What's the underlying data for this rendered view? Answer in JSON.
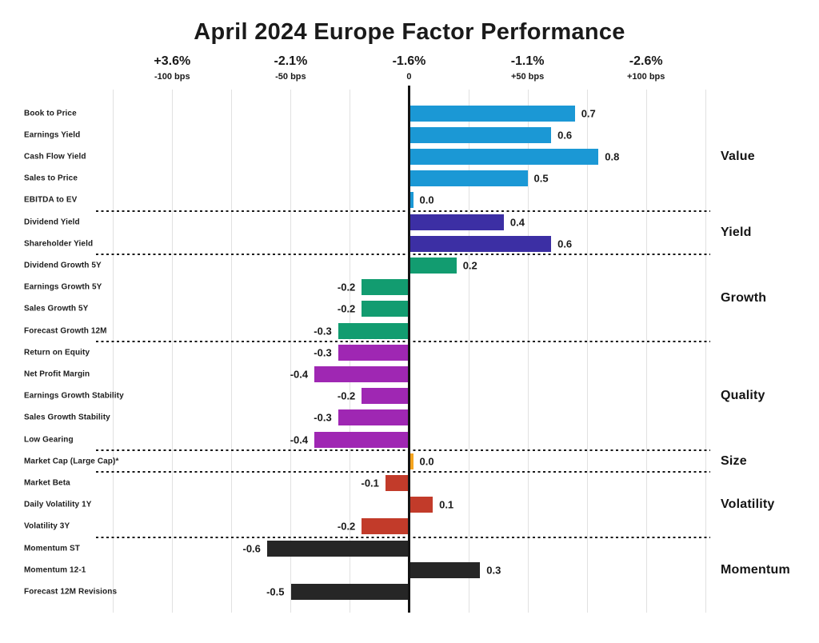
{
  "title": "April 2024 Europe Factor Performance",
  "chart_data": {
    "type": "bar",
    "orientation": "horizontal",
    "title": "April 2024 Europe Factor Performance",
    "value_scale_note": "bar values in units where 1.0 = 100 bps",
    "x_range_bps": [
      -125,
      125
    ],
    "gridline_step_bps": 25,
    "grid": true,
    "x_ticks": [
      {
        "pct": "+3.6%",
        "bps": "-100 bps",
        "bps_value": -100
      },
      {
        "pct": "-2.1%",
        "bps": "-50 bps",
        "bps_value": -50
      },
      {
        "pct": "-1.6%",
        "bps": "0",
        "bps_value": 0
      },
      {
        "pct": "-1.1%",
        "bps": "+50 bps",
        "bps_value": 50
      },
      {
        "pct": "-2.6%",
        "bps": "+100 bps",
        "bps_value": 100
      }
    ],
    "groups": [
      {
        "name": "Value",
        "color": "#1B98D5",
        "factors": [
          {
            "label": "Book to Price",
            "value": 0.7,
            "value_label": "0.7"
          },
          {
            "label": "Earnings Yield",
            "value": 0.6,
            "value_label": "0.6"
          },
          {
            "label": "Cash Flow Yield",
            "value": 0.8,
            "value_label": "0.8"
          },
          {
            "label": "Sales to Price",
            "value": 0.5,
            "value_label": "0.5"
          },
          {
            "label": "EBITDA to EV",
            "value": 0.0,
            "value_label": "0.0"
          }
        ]
      },
      {
        "name": "Yield",
        "color": "#3C2FA4",
        "factors": [
          {
            "label": "Dividend Yield",
            "value": 0.4,
            "value_label": "0.4"
          },
          {
            "label": "Shareholder Yield",
            "value": 0.6,
            "value_label": "0.6"
          }
        ]
      },
      {
        "name": "Growth",
        "color": "#129C70",
        "factors": [
          {
            "label": "Dividend Growth 5Y",
            "value": 0.2,
            "value_label": "0.2"
          },
          {
            "label": "Earnings Growth 5Y",
            "value": -0.2,
            "value_label": "-0.2"
          },
          {
            "label": "Sales Growth 5Y",
            "value": -0.2,
            "value_label": "-0.2"
          },
          {
            "label": "Forecast Growth 12M",
            "value": -0.3,
            "value_label": "-0.3"
          }
        ]
      },
      {
        "name": "Quality",
        "color": "#9F27B3",
        "factors": [
          {
            "label": "Return on Equity",
            "value": -0.3,
            "value_label": "-0.3"
          },
          {
            "label": "Net Profit Margin",
            "value": -0.4,
            "value_label": "-0.4"
          },
          {
            "label": "Earnings Growth Stability",
            "value": -0.2,
            "value_label": "-0.2"
          },
          {
            "label": "Sales Growth Stability",
            "value": -0.3,
            "value_label": "-0.3"
          },
          {
            "label": "Low Gearing",
            "value": -0.4,
            "value_label": "-0.4"
          }
        ]
      },
      {
        "name": "Size",
        "color": "#F5A41F",
        "factors": [
          {
            "label": "Market Cap (Large Cap)*",
            "value": 0.0,
            "value_label": "0.0"
          }
        ]
      },
      {
        "name": "Volatility",
        "color": "#C23B2A",
        "factors": [
          {
            "label": "Market Beta",
            "value": -0.1,
            "value_label": "-0.1"
          },
          {
            "label": "Daily Volatility 1Y",
            "value": 0.1,
            "value_label": "0.1"
          },
          {
            "label": "Volatility 3Y",
            "value": -0.2,
            "value_label": "-0.2"
          }
        ]
      },
      {
        "name": "Momentum",
        "color": "#262626",
        "factors": [
          {
            "label": "Momentum ST",
            "value": -0.6,
            "value_label": "-0.6"
          },
          {
            "label": "Momentum 12-1",
            "value": 0.3,
            "value_label": "0.3"
          },
          {
            "label": "Forecast 12M Revisions",
            "value": -0.5,
            "value_label": "-0.5"
          }
        ]
      }
    ]
  }
}
